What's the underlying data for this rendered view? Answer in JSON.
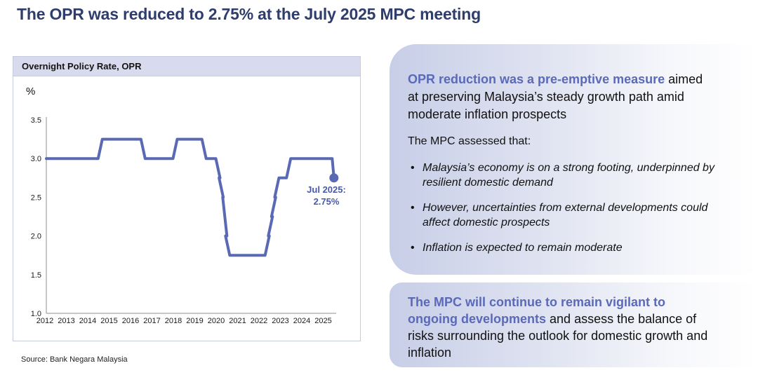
{
  "page": {
    "title": "The OPR was reduced to 2.75% at the July 2025 MPC meeting",
    "source": "Source: Bank Negara Malaysia"
  },
  "chart": {
    "panel_title": "Overnight Policy Rate, OPR",
    "unit_label": "%",
    "annotation": {
      "line1": "Jul 2025:",
      "line2": "2.75%"
    }
  },
  "chart_data": {
    "type": "line",
    "title": "Overnight Policy Rate, OPR",
    "ylabel": "%",
    "line_style": "step",
    "grid": false,
    "xlim": [
      2012,
      2025.6
    ],
    "ylim": [
      1.0,
      3.5
    ],
    "x_ticks": [
      2012,
      2013,
      2014,
      2015,
      2016,
      2017,
      2018,
      2019,
      2020,
      2021,
      2022,
      2023,
      2024,
      2025
    ],
    "y_ticks": [
      3.5,
      3.0,
      2.5,
      2.0,
      1.5,
      1.0
    ],
    "y_tick_labels": [
      "3.5",
      "3.0",
      "2.5",
      "2.0",
      "1.5",
      "1.0"
    ],
    "segments": [
      {
        "from": 2012.0,
        "to": 2014.55,
        "rate": 3.0
      },
      {
        "from": 2014.55,
        "to": 2016.55,
        "rate": 3.25
      },
      {
        "from": 2016.55,
        "to": 2018.05,
        "rate": 3.0
      },
      {
        "from": 2018.05,
        "to": 2019.4,
        "rate": 3.25
      },
      {
        "from": 2019.4,
        "to": 2020.05,
        "rate": 3.0
      },
      {
        "from": 2020.05,
        "to": 2020.2,
        "rate": 2.75
      },
      {
        "from": 2020.2,
        "to": 2020.37,
        "rate": 2.5
      },
      {
        "from": 2020.37,
        "to": 2020.5,
        "rate": 2.0
      },
      {
        "from": 2020.5,
        "to": 2022.35,
        "rate": 1.75
      },
      {
        "from": 2022.35,
        "to": 2022.5,
        "rate": 2.0
      },
      {
        "from": 2022.5,
        "to": 2022.65,
        "rate": 2.25
      },
      {
        "from": 2022.65,
        "to": 2022.8,
        "rate": 2.5
      },
      {
        "from": 2022.8,
        "to": 2023.35,
        "rate": 2.75
      },
      {
        "from": 2023.35,
        "to": 2025.42,
        "rate": 3.0
      }
    ],
    "end_point": {
      "x": 2025.5,
      "rate": 2.75,
      "label": "Jul 2025: 2.75%"
    },
    "line_color": "#5a69b4",
    "marker_color": "#5a69b4",
    "axis_color": "#8f8f8f",
    "tick_text_color": "#1a1a1a"
  },
  "insights": {
    "box1": {
      "heading": "OPR reduction was a pre-emptive measure",
      "body": "aimed at preserving Malaysia’s steady growth path amid moderate inflation prospects",
      "intro": "The MPC assessed that:",
      "bullets": [
        "Malaysia’s economy is on a strong footing, underpinned by resilient domestic demand",
        "However, uncertainties from external developments could affect domestic prospects",
        "Inflation is expected to remain moderate"
      ]
    },
    "box2": {
      "heading": "The MPC will continue to remain vigilant to ongoing developments",
      "body": "and assess the balance of risks surrounding the outlook for domestic growth and inflation"
    }
  },
  "colors": {
    "title_navy": "#2e3d6c",
    "accent_blue": "#5a69b8",
    "panel_header_bg": "#d7dbed",
    "panel_border": "#c6cbe0",
    "box_gradient_left": "#c7cee7",
    "annotation_blue": "#4a5aa8"
  }
}
